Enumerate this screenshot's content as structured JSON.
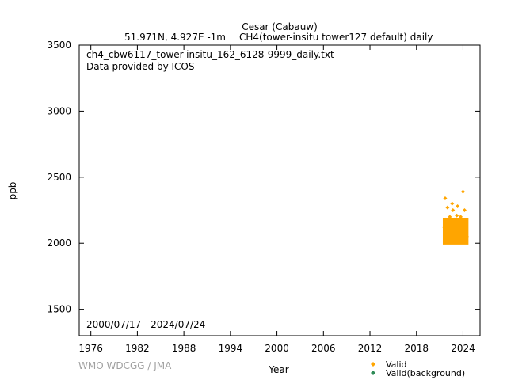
{
  "chart_data": {
    "type": "scatter",
    "title_line1": "Cesar (Cabauw)",
    "title_line2_left": "51.971N, 4.927E -1m",
    "title_line2_right": "CH4(tower-insitu tower127 default) daily",
    "annotation_file": "ch4_cbw6117_tower-insitu_162_6128-9999_daily.txt",
    "annotation_provider": "Data provided by ICOS",
    "annotation_period": "2000/07/17 - 2024/07/24",
    "xlabel": "Year",
    "ylabel": "ppb",
    "xlim": [
      1974.5,
      2026.2
    ],
    "ylim": [
      1300,
      3500
    ],
    "xticks": [
      1976,
      1982,
      1988,
      1994,
      2000,
      2006,
      2012,
      2018,
      2024
    ],
    "yticks": [
      1500,
      2000,
      2500,
      3000,
      3500
    ],
    "grid": false,
    "legend_position": "bottom-right",
    "series": [
      {
        "name": "Valid",
        "color": "#ffa500",
        "x": [
          2021.6,
          2021.7,
          2021.8,
          2021.9,
          2022.0,
          2022.1,
          2022.2,
          2022.3,
          2022.4,
          2022.5,
          2022.6,
          2022.7,
          2022.8,
          2022.9,
          2023.0,
          2023.1,
          2023.2,
          2023.3,
          2023.4,
          2023.5,
          2023.6,
          2023.7,
          2023.8,
          2023.9,
          2024.0,
          2024.1,
          2024.2,
          2024.3,
          2024.4,
          2024.5
        ],
        "y": [
          2120,
          2340,
          2180,
          2080,
          2270,
          2010,
          2150,
          2200,
          2060,
          2110,
          2300,
          2250,
          2040,
          2180,
          2130,
          2020,
          2210,
          2280,
          2090,
          2170,
          2060,
          2200,
          2120,
          2040,
          2390,
          2160,
          2250,
          2080,
          2130,
          2050
        ]
      },
      {
        "name": "Valid(background)",
        "color": "#2e8b57",
        "x": [],
        "y": []
      }
    ]
  },
  "watermark": "WMO WDCGG / JMA"
}
